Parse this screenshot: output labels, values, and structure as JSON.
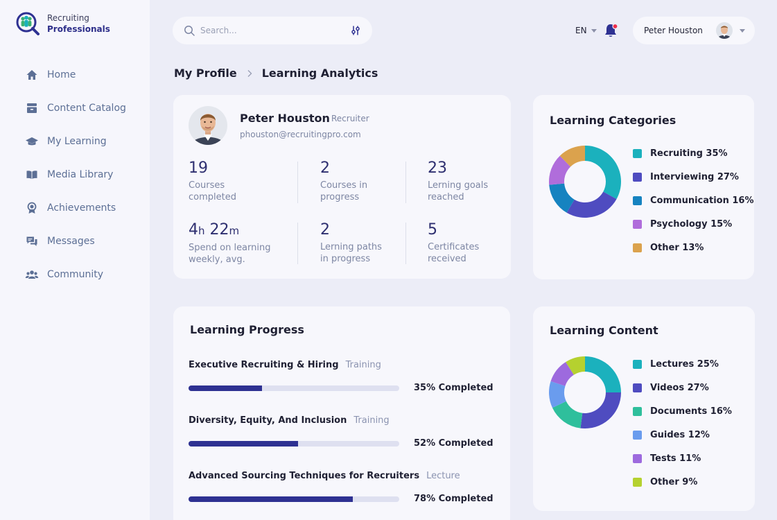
{
  "brand": {
    "line1": "Recruiting",
    "line2": "Professionals"
  },
  "nav": [
    {
      "label": "Home",
      "icon": "home-icon"
    },
    {
      "label": "Content Catalog",
      "icon": "catalog-icon"
    },
    {
      "label": "My Learning",
      "icon": "graduation-cap-icon"
    },
    {
      "label": "Media Library",
      "icon": "book-icon"
    },
    {
      "label": "Achievements",
      "icon": "medal-icon"
    },
    {
      "label": "Messages",
      "icon": "messages-icon"
    },
    {
      "label": "Community",
      "icon": "community-icon"
    }
  ],
  "search": {
    "placeholder": "Search..."
  },
  "header": {
    "language": "EN",
    "user_name": "Peter Houston",
    "has_notification": true
  },
  "breadcrumb": {
    "parent": "My Profile",
    "current": "Learning Analytics"
  },
  "profile": {
    "name": "Peter Houston",
    "role": "Recruiter",
    "email": "phouston@recruitingpro.com",
    "stats": [
      {
        "value": "19",
        "label1": "Courses",
        "label2": "completed"
      },
      {
        "value": "2",
        "label1": "Courses in",
        "label2": "progress"
      },
      {
        "value": "23",
        "label1": "Lerning goals",
        "label2": "reached"
      },
      {
        "hours": "4",
        "h_unit": "h",
        "minutes": "22",
        "m_unit": "m",
        "label1": "Spend on learning",
        "label2": "weekly, avg."
      },
      {
        "value": "2",
        "label1": "Lerning paths",
        "label2": "in progress"
      },
      {
        "value": "5",
        "label1": "Certificates",
        "label2": "received"
      }
    ]
  },
  "learning_categories": {
    "title": "Learning Categories",
    "items": [
      {
        "label": "Recruiting 35%",
        "value": 35,
        "color": "#1bb1bd"
      },
      {
        "label": "Interviewing 27%",
        "value": 27,
        "color": "#4f4cc0"
      },
      {
        "label": "Communication 16%",
        "value": 16,
        "color": "#1683c0"
      },
      {
        "label": "Psychology 15%",
        "value": 15,
        "color": "#b06ddb"
      },
      {
        "label": "Other 13%",
        "value": 13,
        "color": "#dba24d"
      }
    ]
  },
  "learning_content": {
    "title": "Learning Content",
    "items": [
      {
        "label": "Lectures 25%",
        "value": 25,
        "color": "#1bb1bd"
      },
      {
        "label": "Videos 27%",
        "value": 27,
        "color": "#4f4cc0"
      },
      {
        "label": "Documents 16%",
        "value": 16,
        "color": "#2fbf9c"
      },
      {
        "label": "Guides 12%",
        "value": 12,
        "color": "#6a9cee"
      },
      {
        "label": "Tests 11%",
        "value": 11,
        "color": "#9d6ade"
      },
      {
        "label": "Other 9%",
        "value": 9,
        "color": "#b5d12f"
      }
    ]
  },
  "learning_progress": {
    "title": "Learning Progress",
    "items": [
      {
        "title": "Executive Recruiting & Hiring",
        "type": "Training",
        "percent": 35,
        "label": "35% Completed"
      },
      {
        "title": "Diversity, Equity, And Inclusion",
        "type": "Training",
        "percent": 52,
        "label": "52% Completed"
      },
      {
        "title": "Advanced Sourcing Techniques for Recruiters",
        "type": "Lecture",
        "percent": 78,
        "label": "78% Completed"
      }
    ]
  }
}
